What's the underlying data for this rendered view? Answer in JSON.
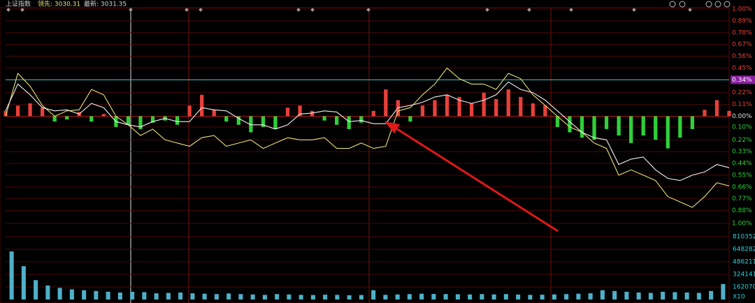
{
  "chart_data": [
    {
      "type": "line",
      "title": "上证指数",
      "subtitles": [
        "领先: 3030.31",
        "最新: 3031.35"
      ],
      "ylim": [
        -1.0,
        1.0
      ],
      "yticks": [
        {
          "value": 1.0,
          "label": "1.00%"
        },
        {
          "value": 0.89,
          "label": "0.89%"
        },
        {
          "value": 0.78,
          "label": "0.78%"
        },
        {
          "value": 0.67,
          "label": "0.67%"
        },
        {
          "value": 0.56,
          "label": "0.56%"
        },
        {
          "value": 0.45,
          "label": "0.45%"
        },
        {
          "value": 0.34,
          "label": "0.34%"
        },
        {
          "value": 0.22,
          "label": "0.22%"
        },
        {
          "value": 0.11,
          "label": "0.11%"
        },
        {
          "value": 0,
          "label": "0.00%"
        },
        {
          "value": -0.1,
          "label": "0.10%"
        },
        {
          "value": -0.22,
          "label": "0.22%"
        },
        {
          "value": -0.33,
          "label": "0.33%"
        },
        {
          "value": -0.44,
          "label": "0.44%"
        },
        {
          "value": -0.55,
          "label": "0.55%"
        },
        {
          "value": -0.66,
          "label": "0.66%"
        },
        {
          "value": -0.77,
          "label": "0.77%"
        },
        {
          "value": -0.88,
          "label": "0.88%"
        },
        {
          "value": -1.0,
          "label": "1.00%"
        }
      ],
      "highlight_tick": 6,
      "grid": true,
      "up_color": "#e8403a",
      "down_color": "#2fcf3a",
      "series": [
        {
          "name": "最新",
          "color": "#f2f2f2",
          "values": [
            0.05,
            0.3,
            0.2,
            0.08,
            0.05,
            0.06,
            0.02,
            0.12,
            0.08,
            -0.05,
            -0.08,
            -0.1,
            -0.05,
            -0.02,
            -0.05,
            -0.05,
            0.08,
            0.06,
            0.05,
            -0.02,
            -0.08,
            -0.08,
            -0.12,
            -0.08,
            0.02,
            0.03,
            0.05,
            0.04,
            -0.05,
            -0.04,
            -0.07,
            -0.07,
            0.08,
            0.1,
            0.13,
            0.18,
            0.2,
            0.15,
            0.12,
            0.15,
            0.2,
            0.32,
            0.25,
            0.22,
            0.15,
            0.05,
            -0.05,
            -0.15,
            -0.2,
            -0.22,
            -0.45,
            -0.4,
            -0.38,
            -0.5,
            -0.58,
            -0.6,
            -0.55,
            -0.52,
            -0.45,
            -0.48
          ]
        },
        {
          "name": "领先",
          "color": "#e8e07a",
          "values": [
            0,
            0.4,
            0.28,
            0.1,
            0,
            0.05,
            0.06,
            0.25,
            0.2,
            0,
            -0.08,
            -0.18,
            -0.12,
            -0.22,
            -0.25,
            -0.28,
            -0.2,
            -0.18,
            -0.28,
            -0.25,
            -0.22,
            -0.3,
            -0.25,
            -0.2,
            -0.22,
            -0.22,
            -0.2,
            -0.3,
            -0.3,
            -0.25,
            -0.3,
            -0.28,
            0.05,
            0.08,
            0.2,
            0.3,
            0.45,
            0.35,
            0.3,
            0.3,
            0.25,
            0.4,
            0.35,
            0.2,
            0.1,
            0,
            -0.1,
            -0.15,
            -0.25,
            -0.3,
            -0.55,
            -0.5,
            -0.55,
            -0.6,
            -0.75,
            -0.8,
            -0.85,
            -0.75,
            -0.62,
            -0.65
          ]
        }
      ],
      "bars": [
        0.05,
        0.1,
        0.12,
        0.08,
        -0.05,
        -0.03,
        0.04,
        -0.05,
        0.02,
        -0.1,
        -0.08,
        -0.12,
        -0.06,
        -0.04,
        -0.08,
        0.1,
        0.2,
        0.06,
        -0.05,
        -0.08,
        -0.15,
        -0.1,
        -0.12,
        0.08,
        0.1,
        0.05,
        -0.04,
        -0.08,
        -0.12,
        -0.06,
        0.05,
        0.25,
        0.15,
        -0.05,
        0.1,
        0.15,
        0.2,
        0.18,
        0.12,
        0.22,
        0.16,
        0.25,
        0.18,
        0.12,
        0.1,
        -0.1,
        -0.15,
        -0.2,
        -0.22,
        -0.12,
        -0.18,
        -0.25,
        -0.18,
        -0.22,
        -0.3,
        -0.2,
        -0.12,
        0.06,
        0.15,
        0.05
      ]
    },
    {
      "type": "bar",
      "ylim": [
        0,
        972422
      ],
      "yticks": [
        810352,
        648282,
        486211,
        324141,
        162070
      ],
      "unit_label": "X10",
      "color": "#4fb0c8",
      "label_color": "#30d0d8",
      "values": [
        620000,
        430000,
        250000,
        180000,
        150000,
        130000,
        120000,
        110000,
        100000,
        90000,
        100000,
        95000,
        80000,
        85000,
        90000,
        80000,
        75000,
        70000,
        78000,
        70000,
        65000,
        60000,
        70000,
        65000,
        60000,
        58000,
        62000,
        60000,
        55000,
        58000,
        120000,
        60000,
        65000,
        70000,
        75000,
        72000,
        70000,
        68000,
        65000,
        70000,
        66000,
        70000,
        64000,
        60000,
        62000,
        66000,
        70000,
        75000,
        80000,
        120000,
        110000,
        100000,
        90000,
        85000,
        100000,
        95000,
        90000,
        85000,
        110000,
        200000
      ]
    }
  ]
}
